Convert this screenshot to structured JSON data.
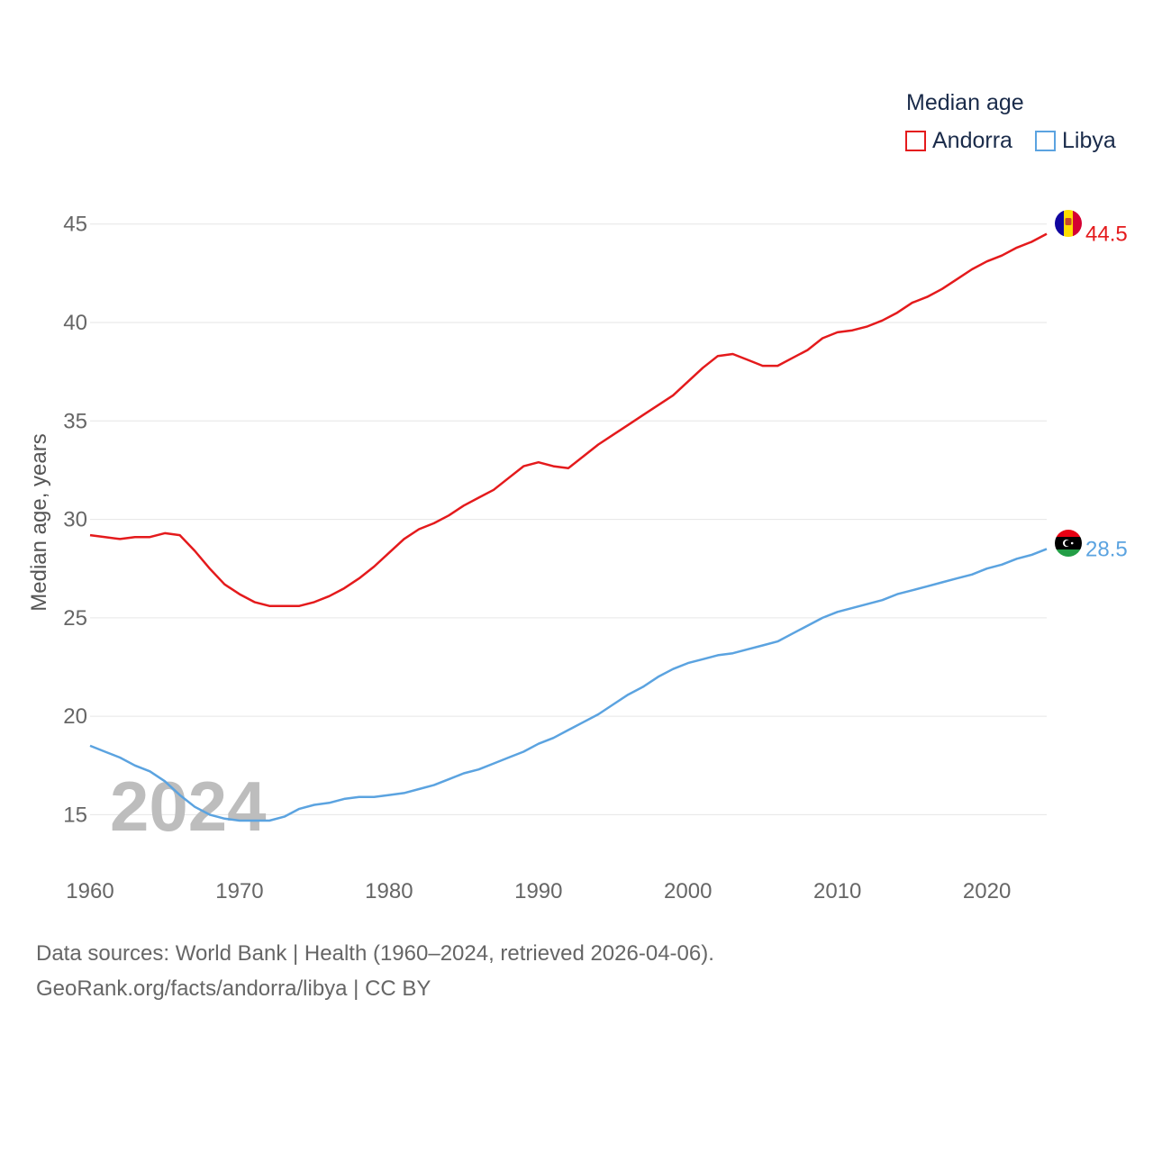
{
  "chart_data": {
    "type": "line",
    "ylabel": "Median age, years",
    "xlabel": "",
    "legend_title": "Median age",
    "year_label": "2024",
    "xlim": [
      1960,
      2024
    ],
    "ylim": [
      12,
      47
    ],
    "y_ticks": [
      15,
      20,
      25,
      30,
      35,
      40,
      45
    ],
    "x_ticks": [
      1960,
      1970,
      1980,
      1990,
      2000,
      2010,
      2020
    ],
    "grid": true,
    "legend_position": "top-right",
    "x": [
      1960,
      1961,
      1962,
      1963,
      1964,
      1965,
      1966,
      1967,
      1968,
      1969,
      1970,
      1971,
      1972,
      1973,
      1974,
      1975,
      1976,
      1977,
      1978,
      1979,
      1980,
      1981,
      1982,
      1983,
      1984,
      1985,
      1986,
      1987,
      1988,
      1989,
      1990,
      1991,
      1992,
      1993,
      1994,
      1995,
      1996,
      1997,
      1998,
      1999,
      2000,
      2001,
      2002,
      2003,
      2004,
      2005,
      2006,
      2007,
      2008,
      2009,
      2010,
      2011,
      2012,
      2013,
      2014,
      2015,
      2016,
      2017,
      2018,
      2019,
      2020,
      2021,
      2022,
      2023,
      2024
    ],
    "series": [
      {
        "name": "Andorra",
        "color": "#e41a1c",
        "end_label": "44.5",
        "flag": "andorra-flag",
        "values": [
          29.2,
          29.1,
          29.0,
          29.1,
          29.1,
          29.3,
          29.2,
          28.4,
          27.5,
          26.7,
          26.2,
          25.8,
          25.6,
          25.6,
          25.6,
          25.8,
          26.1,
          26.5,
          27.0,
          27.6,
          28.3,
          29.0,
          29.5,
          29.8,
          30.2,
          30.7,
          31.1,
          31.5,
          32.1,
          32.7,
          32.9,
          32.7,
          32.6,
          33.2,
          33.8,
          34.3,
          34.8,
          35.3,
          35.8,
          36.3,
          37.0,
          37.7,
          38.3,
          38.4,
          38.1,
          37.8,
          37.8,
          38.2,
          38.6,
          39.2,
          39.5,
          39.6,
          39.8,
          40.1,
          40.5,
          41.0,
          41.3,
          41.7,
          42.2,
          42.7,
          43.1,
          43.4,
          43.8,
          44.1,
          44.5
        ]
      },
      {
        "name": "Libya",
        "color": "#5ba3e0",
        "end_label": "28.5",
        "flag": "libya-flag",
        "values": [
          18.5,
          18.2,
          17.9,
          17.5,
          17.2,
          16.7,
          16.0,
          15.4,
          15.0,
          14.8,
          14.7,
          14.7,
          14.7,
          14.9,
          15.3,
          15.5,
          15.6,
          15.8,
          15.9,
          15.9,
          16.0,
          16.1,
          16.3,
          16.5,
          16.8,
          17.1,
          17.3,
          17.6,
          17.9,
          18.2,
          18.6,
          18.9,
          19.3,
          19.7,
          20.1,
          20.6,
          21.1,
          21.5,
          22.0,
          22.4,
          22.7,
          22.9,
          23.1,
          23.2,
          23.4,
          23.6,
          23.8,
          24.2,
          24.6,
          25.0,
          25.3,
          25.5,
          25.7,
          25.9,
          26.2,
          26.4,
          26.6,
          26.8,
          27.0,
          27.2,
          27.5,
          27.7,
          28.0,
          28.2,
          28.5
        ]
      }
    ]
  },
  "source": {
    "line1": "Data sources: World Bank | Health (1960–2024, retrieved 2026-04-06).",
    "line2": "GeoRank.org/facts/andorra/libya | CC BY"
  }
}
